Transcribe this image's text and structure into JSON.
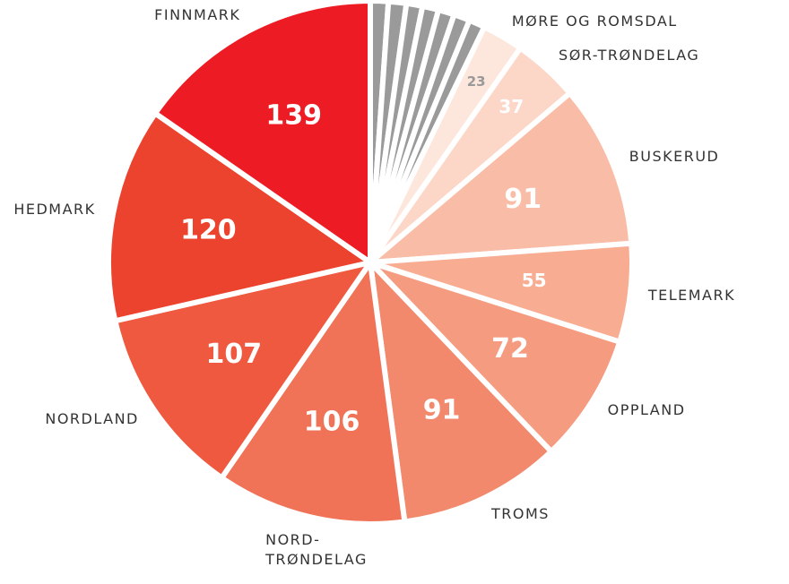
{
  "chart_data": {
    "type": "pie",
    "categories": [
      null,
      null,
      null,
      null,
      null,
      null,
      null,
      "MØRE OG ROMSDAL",
      "SØR-TRØNDELAG",
      "BUSKERUD",
      "TELEMARK",
      "OPPLAND",
      "TROMS",
      "NORD-TRØNDELAG",
      "NORDLAND",
      "HEDMARK",
      "FINNMARK"
    ],
    "values": [
      10,
      10,
      9,
      9,
      9,
      9,
      9,
      23,
      37,
      91,
      55,
      72,
      91,
      106,
      107,
      120,
      139
    ],
    "colors": [
      "#9a9a9a",
      "#9a9a9a",
      "#9a9a9a",
      "#9a9a9a",
      "#9a9a9a",
      "#9a9a9a",
      "#9a9a9a",
      "#fde6dc",
      "#fcd6c7",
      "#f9bca6",
      "#f8ad93",
      "#f59c80",
      "#f2896c",
      "#f07257",
      "#ee5940",
      "#ec432f",
      "#ed1c24"
    ]
  }
}
